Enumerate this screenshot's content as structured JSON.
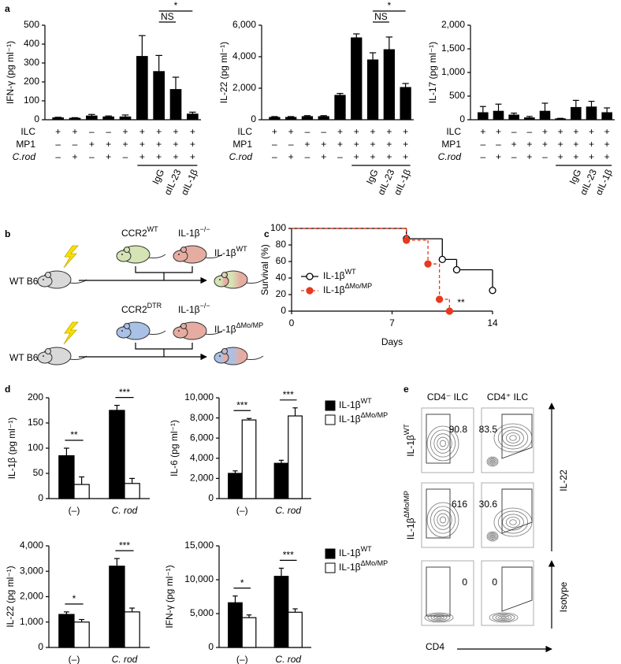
{
  "panel_labels": [
    "a",
    "b",
    "c",
    "d",
    "e"
  ],
  "chart_data": [
    {
      "type": "bar",
      "ylabel": "IFN-γ (pg ml⁻¹)",
      "ylim": [
        0,
        500
      ],
      "yticks": [
        0,
        100,
        200,
        300,
        400,
        500
      ],
      "color": "#000000",
      "values": [
        10,
        8,
        20,
        15,
        15,
        335,
        255,
        160,
        30
      ],
      "errors": [
        3,
        3,
        8,
        5,
        10,
        110,
        85,
        65,
        10
      ],
      "rows": [
        {
          "name": "ILC",
          "italic": false,
          "signs": [
            "+",
            "+",
            "–",
            "–",
            "+",
            "+",
            "+",
            "+",
            "+"
          ]
        },
        {
          "name": "MP1",
          "italic": false,
          "signs": [
            "–",
            "–",
            "+",
            "+",
            "+",
            "+",
            "+",
            "+",
            "+"
          ]
        },
        {
          "name": "C.rod",
          "italic": true,
          "signs": [
            "–",
            "+",
            "–",
            "+",
            "–",
            "+",
            "+",
            "+",
            "+"
          ]
        }
      ],
      "treatments": [
        "IgG",
        "αIL-23",
        "αIL-1β"
      ],
      "significance": [
        {
          "label": "NS",
          "from": 6,
          "to": 7
        },
        {
          "label": "*",
          "from": 6,
          "to": 8
        }
      ]
    },
    {
      "type": "bar",
      "ylabel": "IL-22 (pg ml⁻¹)",
      "ylim": [
        0,
        6000
      ],
      "yticks": [
        0,
        {
          "value": 2000,
          "label": "2,000"
        },
        {
          "value": 4000,
          "label": "4,000"
        },
        {
          "value": 6000,
          "label": "6,000"
        }
      ],
      "color": "#000000",
      "values": [
        150,
        150,
        200,
        200,
        1550,
        5200,
        3800,
        4450,
        2050
      ],
      "errors": [
        50,
        50,
        60,
        60,
        120,
        250,
        450,
        800,
        250
      ],
      "rows": [
        {
          "name": "ILC",
          "italic": false,
          "signs": [
            "+",
            "+",
            "–",
            "–",
            "+",
            "+",
            "+",
            "+",
            "+"
          ]
        },
        {
          "name": "MP1",
          "italic": false,
          "signs": [
            "–",
            "–",
            "+",
            "+",
            "+",
            "+",
            "+",
            "+",
            "+"
          ]
        },
        {
          "name": "C.rod",
          "italic": true,
          "signs": [
            "–",
            "+",
            "–",
            "+",
            "–",
            "+",
            "+",
            "+",
            "+"
          ]
        }
      ],
      "treatments": [
        "IgG",
        "αIL-23",
        "αIL-1β"
      ],
      "significance": [
        {
          "label": "NS",
          "from": 6,
          "to": 7
        },
        {
          "label": "*",
          "from": 6,
          "to": 8
        }
      ]
    },
    {
      "type": "bar",
      "ylabel": "IL-17 (pg ml⁻¹)",
      "ylim": [
        0,
        2000
      ],
      "yticks": [
        0,
        500,
        {
          "value": 1000,
          "label": "1,000"
        },
        {
          "value": 1500,
          "label": "1,500"
        },
        {
          "value": 2000,
          "label": "2,000"
        }
      ],
      "color": "#000000",
      "values": [
        150,
        180,
        100,
        40,
        180,
        20,
        260,
        270,
        150
      ],
      "errors": [
        130,
        150,
        40,
        30,
        170,
        10,
        150,
        120,
        100
      ],
      "rows": [
        {
          "name": "ILC",
          "italic": false,
          "signs": [
            "+",
            "+",
            "–",
            "–",
            "+",
            "+",
            "+",
            "+",
            "+"
          ]
        },
        {
          "name": "MP1",
          "italic": false,
          "signs": [
            "–",
            "–",
            "+",
            "+",
            "+",
            "+",
            "+",
            "+",
            "+"
          ]
        },
        {
          "name": "C.rod",
          "italic": true,
          "signs": [
            "–",
            "+",
            "–",
            "+",
            "–",
            "+",
            "+",
            "+",
            "+"
          ]
        }
      ],
      "treatments": [
        "IgG",
        "αIL-23",
        "αIL-1β"
      ],
      "significance": []
    },
    {
      "type": "step",
      "xlabel": "Days",
      "ylabel": "Survival (%)",
      "xlim": [
        0,
        14
      ],
      "xticks": [
        0,
        7,
        14
      ],
      "ylim": [
        0,
        100
      ],
      "yticks": [
        0,
        20,
        40,
        60,
        80,
        100
      ],
      "legend": "lower left",
      "annotation": "**",
      "series": [
        {
          "name": "IL-1β",
          "superscript": "WT",
          "color": "#000000",
          "dashed": false,
          "marker": "open",
          "x": [
            0,
            8,
            10.5,
            11.5,
            14
          ],
          "values": [
            100,
            87.5,
            62.5,
            50,
            25
          ]
        },
        {
          "name": "IL-1β",
          "superscript": "ΔMo/MP",
          "color": "#e8391f",
          "dashed": true,
          "marker": "filled",
          "x": [
            0,
            8,
            9.5,
            10.3,
            11
          ],
          "values": [
            100,
            85.7,
            57.1,
            14.3,
            0
          ]
        }
      ]
    },
    {
      "type": "grouped_bar",
      "ylabel": "IL-1β (pg ml⁻¹)",
      "ylim": [
        0,
        200
      ],
      "yticks": [
        0,
        50,
        100,
        150,
        200
      ],
      "categories": [
        "(–)",
        "C. rod"
      ],
      "category_italic": [
        false,
        true
      ],
      "significance": [
        "**",
        "***"
      ],
      "series": [
        {
          "color": "#000000",
          "values": [
            85,
            175
          ],
          "errors": [
            15,
            10
          ]
        },
        {
          "color": "#ffffff",
          "values": [
            28,
            30
          ],
          "errors": [
            15,
            10
          ]
        }
      ]
    },
    {
      "type": "grouped_bar",
      "ylabel": "IL-6 (pg ml⁻¹)",
      "ylim": [
        0,
        10000
      ],
      "yticks": [
        0,
        {
          "value": 2000,
          "label": "2,000"
        },
        {
          "value": 4000,
          "label": "4,000"
        },
        {
          "value": 6000,
          "label": "6,000"
        },
        {
          "value": 8000,
          "label": "8,000"
        },
        {
          "value": 10000,
          "label": "10,000"
        }
      ],
      "categories": [
        "(–)",
        "C. rod"
      ],
      "category_italic": [
        false,
        true
      ],
      "significance": [
        "***",
        "***"
      ],
      "legend": "right",
      "series": [
        {
          "name": "IL-1β",
          "superscript": "WT",
          "color": "#000000",
          "values": [
            2500,
            3500
          ],
          "errors": [
            250,
            300
          ]
        },
        {
          "name": "IL-1β",
          "superscript": "ΔMo/MP",
          "color": "#ffffff",
          "values": [
            7800,
            8200
          ],
          "errors": [
            150,
            800
          ]
        }
      ]
    },
    {
      "type": "grouped_bar",
      "ylabel": "IL-22 (pg ml⁻¹)",
      "ylim": [
        0,
        4000
      ],
      "yticks": [
        0,
        {
          "value": 1000,
          "label": "1,000"
        },
        {
          "value": 2000,
          "label": "2,000"
        },
        {
          "value": 3000,
          "label": "3,000"
        },
        {
          "value": 4000,
          "label": "4,000"
        }
      ],
      "categories": [
        "(–)",
        "C. rod"
      ],
      "category_italic": [
        false,
        true
      ],
      "significance": [
        "*",
        "***"
      ],
      "series": [
        {
          "color": "#000000",
          "values": [
            1300,
            3200
          ],
          "errors": [
            100,
            300
          ]
        },
        {
          "color": "#ffffff",
          "values": [
            1000,
            1400
          ],
          "errors": [
            100,
            150
          ]
        }
      ]
    },
    {
      "type": "grouped_bar",
      "ylabel": "IFN-γ (pg ml⁻¹)",
      "ylim": [
        0,
        15000
      ],
      "yticks": [
        0,
        {
          "value": 5000,
          "label": "5,000"
        },
        {
          "value": 10000,
          "label": "10,000"
        },
        {
          "value": 15000,
          "label": "15,000"
        }
      ],
      "categories": [
        "(–)",
        "C. rod"
      ],
      "category_italic": [
        false,
        true
      ],
      "significance": [
        "*",
        "***"
      ],
      "legend": "right",
      "series": [
        {
          "name": "IL-1β",
          "superscript": "WT",
          "color": "#000000",
          "values": [
            6600,
            10500
          ],
          "errors": [
            1000,
            1200
          ]
        },
        {
          "name": "IL-1β",
          "superscript": "ΔMo/MP",
          "color": "#ffffff",
          "values": [
            4400,
            5200
          ],
          "errors": [
            400,
            500
          ]
        }
      ]
    }
  ],
  "diagram": {
    "rows": [
      {
        "host": "WT B6",
        "donors": [
          {
            "name": "CCR2",
            "sup": "WT",
            "color": "#d6e3b4"
          },
          {
            "name": "IL-1β",
            "sup": "−/−",
            "color": "#e6aca2"
          }
        ],
        "result": {
          "name": "IL-1β",
          "sup": "WT"
        }
      },
      {
        "host": "WT B6",
        "donors": [
          {
            "name": "CCR2",
            "sup": "DTR",
            "color": "#a9c1e6"
          },
          {
            "name": "IL-1β",
            "sup": "−/−",
            "color": "#e6aca2"
          }
        ],
        "result": {
          "name": "IL-1β",
          "sup": "ΔMo/MP"
        }
      }
    ]
  },
  "flow": {
    "columns": [
      "CD4⁻ ILC",
      "CD4⁺ ILC"
    ],
    "rows": [
      {
        "name": "IL-1β",
        "sup": "WT",
        "percents": [
          90.8,
          83.5
        ]
      },
      {
        "name": "IL-1β",
        "sup": "ΔMo/MP",
        "percents": [
          616,
          30.6
        ]
      },
      {
        "percents": [
          0,
          0
        ]
      }
    ],
    "y_label": "IL-22",
    "isotype_label": "Isotype",
    "x_label": "CD4"
  }
}
